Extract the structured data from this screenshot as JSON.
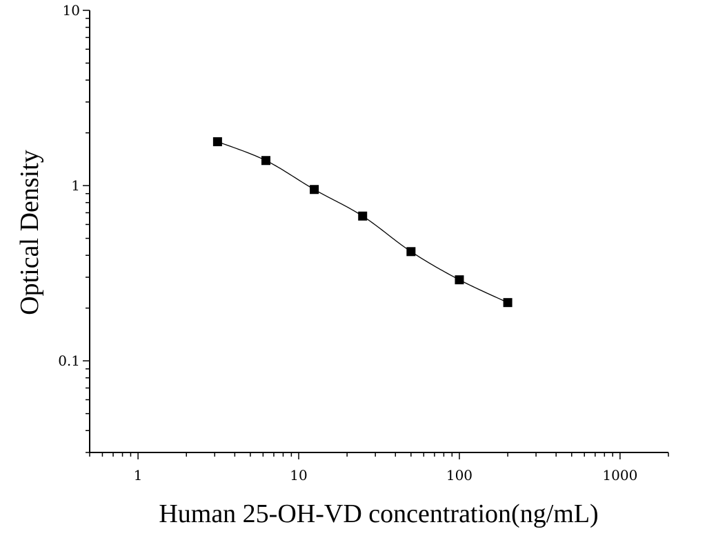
{
  "chart_data": {
    "type": "scatter",
    "title": "",
    "xlabel": "Human 25-OH-VD concentration(ng/mL)",
    "ylabel": "Optical Density",
    "xscale": "log",
    "yscale": "log",
    "xlim": [
      0.5,
      2000
    ],
    "ylim": [
      0.03,
      10
    ],
    "xticks": [
      1,
      10,
      100,
      1000
    ],
    "xtick_labels": [
      "1",
      "10",
      "100",
      "1000"
    ],
    "yticks": [
      0.1,
      1,
      10
    ],
    "ytick_labels": [
      "0.1",
      "1",
      "10"
    ],
    "grid": false,
    "legend": "none",
    "marker": "square",
    "marker_color": "#000000",
    "fit_line": "smooth curve through points",
    "series": [
      {
        "x": [
          3.125,
          6.25,
          12.5,
          25,
          50,
          100,
          200
        ],
        "y": [
          1.78,
          1.39,
          0.95,
          0.67,
          0.42,
          0.29,
          0.215
        ]
      }
    ]
  }
}
